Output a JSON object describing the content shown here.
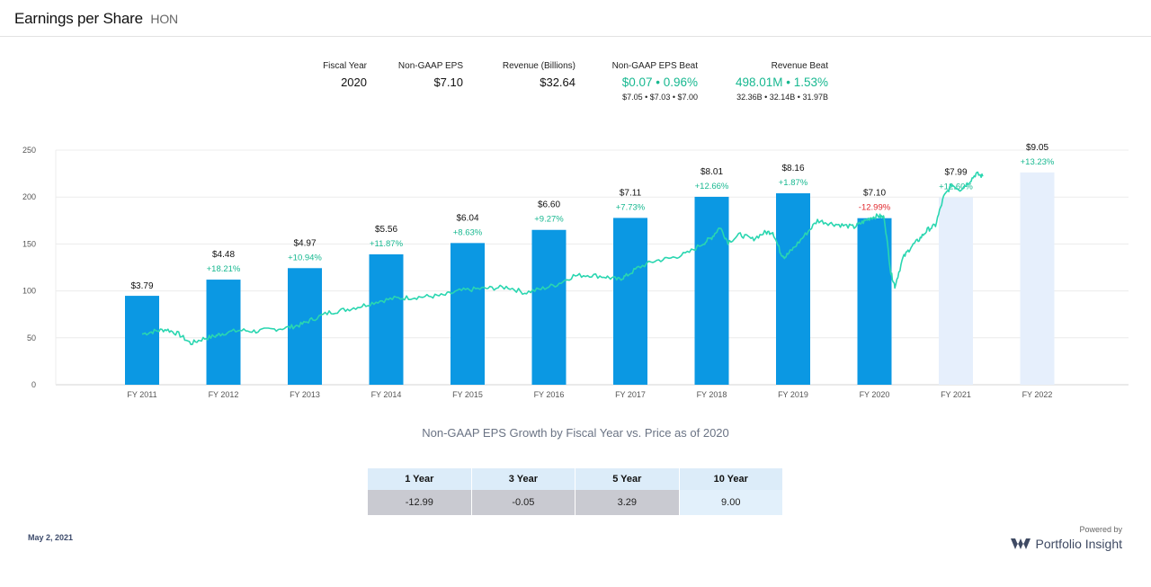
{
  "header": {
    "title": "Earnings per Share",
    "ticker": "HON"
  },
  "stats": {
    "fiscal_year_label": "Fiscal Year",
    "fiscal_year": "2020",
    "eps_label": "Non-GAAP EPS",
    "eps": "$7.10",
    "revenue_label": "Revenue (Billions)",
    "revenue": "$32.64",
    "eps_beat_label": "Non-GAAP EPS Beat",
    "eps_beat": "$0.07 • 0.96%",
    "eps_beat_sub": "$7.05 • $7.03 • $7.00",
    "revenue_beat_label": "Revenue Beat",
    "revenue_beat": "498.01M • 1.53%",
    "revenue_beat_sub": "32.36B • 32.14B • 31.97B"
  },
  "colors": {
    "bar": "#0b98e3",
    "estimate_bar": "#e6effc",
    "price_line": "#2ad6b0",
    "positive": "#17b890",
    "negative": "#e0262b"
  },
  "chart_data": {
    "type": "bar",
    "categories": [
      "FY 2011",
      "FY 2012",
      "FY 2013",
      "FY 2014",
      "FY 2015",
      "FY 2016",
      "FY 2017",
      "FY 2018",
      "FY 2019",
      "FY 2020",
      "FY 2021",
      "FY 2022"
    ],
    "eps": [
      3.79,
      4.48,
      4.97,
      5.56,
      6.04,
      6.6,
      7.11,
      8.01,
      8.16,
      7.1,
      7.99,
      9.05
    ],
    "eps_labels": [
      "$3.79",
      "$4.48",
      "$4.97",
      "$5.56",
      "$6.04",
      "$6.60",
      "$7.11",
      "$8.01",
      "$8.16",
      "$7.10",
      "$7.99",
      "$9.05"
    ],
    "growth_labels": [
      "",
      "+18.21%",
      "+10.94%",
      "+11.87%",
      "+8.63%",
      "+9.27%",
      "+7.73%",
      "+12.66%",
      "+1.87%",
      "-12.99%",
      "+12.60%",
      "+13.23%"
    ],
    "estimate": [
      false,
      false,
      false,
      false,
      false,
      false,
      false,
      false,
      false,
      false,
      true,
      true
    ],
    "eps_axis_max": 10,
    "price_axis": {
      "ticks": [
        0,
        50,
        100,
        150,
        200,
        250
      ],
      "ylim": [
        0,
        250
      ]
    },
    "price_series": [
      [
        2011.0,
        54
      ],
      [
        2011.15,
        57
      ],
      [
        2011.3,
        59
      ],
      [
        2011.45,
        54
      ],
      [
        2011.6,
        44
      ],
      [
        2011.75,
        49
      ],
      [
        2011.9,
        52
      ],
      [
        2012.0,
        55
      ],
      [
        2012.2,
        58
      ],
      [
        2012.4,
        57
      ],
      [
        2012.6,
        59
      ],
      [
        2012.8,
        61
      ],
      [
        2012.95,
        64
      ],
      [
        2013.1,
        70
      ],
      [
        2013.3,
        77
      ],
      [
        2013.5,
        80
      ],
      [
        2013.7,
        84
      ],
      [
        2013.9,
        89
      ],
      [
        2014.1,
        92
      ],
      [
        2014.3,
        93
      ],
      [
        2014.5,
        94
      ],
      [
        2014.7,
        95
      ],
      [
        2014.9,
        100
      ],
      [
        2015.1,
        102
      ],
      [
        2015.3,
        103
      ],
      [
        2015.5,
        104
      ],
      [
        2015.7,
        98
      ],
      [
        2015.9,
        102
      ],
      [
        2016.1,
        107
      ],
      [
        2016.3,
        116
      ],
      [
        2016.5,
        117
      ],
      [
        2016.7,
        115
      ],
      [
        2016.85,
        112
      ],
      [
        2016.95,
        116
      ],
      [
        2017.1,
        125
      ],
      [
        2017.3,
        132
      ],
      [
        2017.5,
        135
      ],
      [
        2017.7,
        140
      ],
      [
        2017.9,
        151
      ],
      [
        2018.0,
        157
      ],
      [
        2018.1,
        168
      ],
      [
        2018.2,
        152
      ],
      [
        2018.35,
        160
      ],
      [
        2018.5,
        155
      ],
      [
        2018.65,
        162
      ],
      [
        2018.75,
        163
      ],
      [
        2018.85,
        140
      ],
      [
        2018.9,
        136
      ],
      [
        2019.0,
        145
      ],
      [
        2019.15,
        160
      ],
      [
        2019.3,
        175
      ],
      [
        2019.45,
        172
      ],
      [
        2019.6,
        170
      ],
      [
        2019.75,
        168
      ],
      [
        2019.85,
        173
      ],
      [
        2019.95,
        178
      ],
      [
        2020.05,
        180
      ],
      [
        2020.12,
        178
      ],
      [
        2020.2,
        120
      ],
      [
        2020.25,
        105
      ],
      [
        2020.35,
        135
      ],
      [
        2020.45,
        147
      ],
      [
        2020.55,
        155
      ],
      [
        2020.65,
        165
      ],
      [
        2020.75,
        170
      ],
      [
        2020.85,
        200
      ],
      [
        2020.95,
        213
      ],
      [
        2021.05,
        208
      ],
      [
        2021.15,
        215
      ],
      [
        2021.25,
        225
      ],
      [
        2021.33,
        222
      ]
    ]
  },
  "growth_table": {
    "title": "Non-GAAP EPS Growth by Fiscal Year vs. Price as of 2020",
    "headers": [
      "1 Year",
      "3 Year",
      "5 Year",
      "10 Year"
    ],
    "values": [
      "-12.99",
      "-0.05",
      "3.29",
      "9.00"
    ]
  },
  "footer": {
    "date": "May 2, 2021",
    "powered_by": "Powered by",
    "brand": "Portfolio Insight",
    "brand_icon": "portfolio-insight-logo-icon"
  }
}
